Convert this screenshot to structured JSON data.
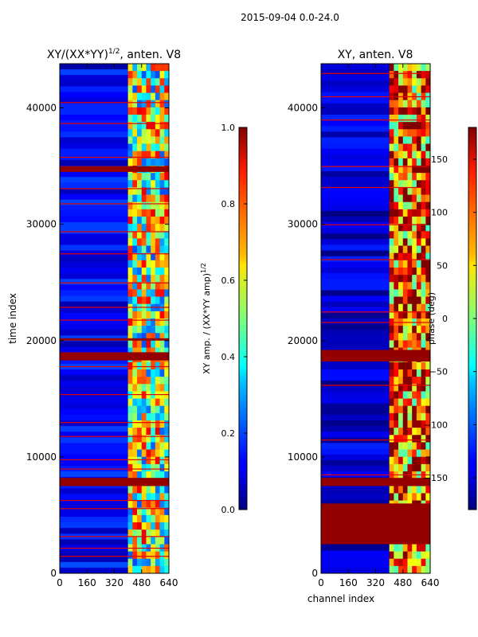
{
  "figure": {
    "suptitle": "2015-09-04 0.0-24.0"
  },
  "chart_data": [
    {
      "type": "heatmap",
      "title": "XY/(XX*YY)^1/2, anten. V8",
      "title_main": "XY/(XX*YY)",
      "title_sup": "1/2",
      "title_tail": ", anten. V8",
      "xlabel": "",
      "ylabel": "time index",
      "xlim": [
        0,
        640
      ],
      "ylim": [
        0,
        43800
      ],
      "xticks": [
        0,
        160,
        320,
        480,
        640
      ],
      "yticks": [
        0,
        10000,
        20000,
        30000,
        40000
      ],
      "colormap": "jet",
      "colorbar": {
        "label": "XY amp. / (XX*YY amp)^1/2",
        "label_main": "XY amp. / (XX*YY amp)",
        "label_sup": "1/2",
        "range": [
          0.0,
          1.0
        ],
        "ticks": [
          0.0,
          0.2,
          0.4,
          0.6,
          0.8,
          1.0
        ],
        "tick_labels": [
          "0.0",
          "0.2",
          "0.4",
          "0.6",
          "0.8",
          "1.0"
        ]
      },
      "background_value": 0.12,
      "feature_channel_range": [
        400,
        640
      ],
      "feature_value": 0.55,
      "saturated_time_bands": [
        [
          7500,
          8200
        ],
        [
          34500,
          35000
        ],
        [
          18300,
          19000
        ],
        [
          20000,
          20200
        ]
      ],
      "thin_flag_rows": [
        1500,
        2200,
        3200,
        5600,
        6300,
        9000,
        9800,
        11800,
        13000,
        15400,
        17800,
        21800,
        22900,
        25000,
        27500,
        29400,
        31800,
        33100,
        35800,
        38700,
        40500
      ]
    },
    {
      "type": "heatmap",
      "title": "XY, anten. V8",
      "xlabel": "channel index",
      "ylabel": "",
      "xlim": [
        0,
        640
      ],
      "ylim": [
        0,
        43800
      ],
      "xticks": [
        0,
        160,
        320,
        480,
        640
      ],
      "yticks": [
        0,
        10000,
        20000,
        30000,
        40000
      ],
      "colormap": "jet",
      "colorbar": {
        "label": "phase (deg)",
        "range": [
          -180,
          180
        ],
        "ticks": [
          -150,
          -100,
          -50,
          0,
          50,
          100,
          150
        ],
        "tick_labels": [
          "−150",
          "−100",
          "−50",
          "0",
          "50",
          "100",
          "150"
        ]
      },
      "background_value": -150,
      "feature_channel_range": [
        400,
        640
      ],
      "feature_value": 100,
      "saturated_time_bands": [
        [
          7500,
          8200
        ],
        [
          18200,
          19200
        ],
        [
          2500,
          6000
        ]
      ],
      "thin_flag_rows": [
        8500,
        11500,
        16200,
        21600,
        22500,
        27000,
        30000,
        33200,
        35000,
        39000,
        41000,
        43000
      ]
    }
  ]
}
